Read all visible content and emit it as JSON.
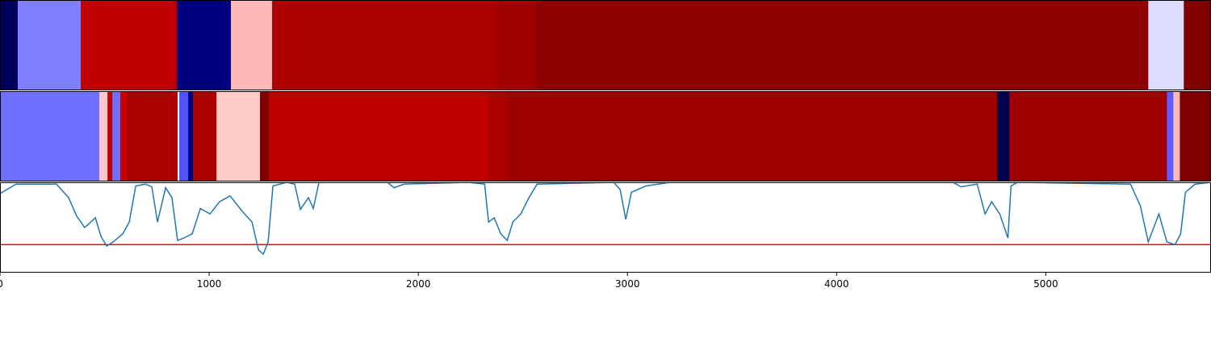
{
  "chart_data": [
    {
      "type": "heatmap-strip",
      "colormap": "seismic",
      "clim": [
        0,
        1
      ],
      "xlim": [
        0,
        5790
      ],
      "bins": [
        0,
        85,
        386,
        846,
        1104,
        1301,
        2375,
        2564,
        5490,
        5660,
        5790
      ],
      "values": [
        0.02,
        0.375,
        0.875,
        0.07,
        0.57,
        0.917,
        0.937,
        0.972,
        0.466,
        1.0
      ]
    },
    {
      "type": "heatmap-strip",
      "colormap": "seismic",
      "clim": [
        0,
        1
      ],
      "xlim": [
        0,
        5790
      ],
      "bins": [
        0,
        475,
        514,
        537,
        575,
        606,
        849,
        857,
        900,
        923,
        1035,
        1243,
        1286,
        2336,
        2421,
        4768,
        4826,
        5579,
        5610,
        5641,
        5790
      ],
      "values": [
        0.358,
        0.554,
        0.875,
        0.358,
        0.86,
        0.917,
        0.5,
        0.33,
        0.07,
        0.917,
        0.55,
        1.0,
        0.875,
        0.917,
        0.937,
        0.0,
        0.937,
        0.34,
        0.57,
        1.0
      ]
    },
    {
      "type": "line",
      "color": "#1f77b4",
      "xlim": [
        0,
        5790
      ],
      "ylim": [
        0,
        1
      ],
      "xticks": [
        0,
        1000,
        2000,
        3000,
        4000,
        5000
      ],
      "hline": 0.31,
      "hline_color": "#ff0000",
      "x": [
        0,
        77,
        270,
        328,
        367,
        405,
        456,
        483,
        510,
        541,
        587,
        618,
        649,
        695,
        726,
        753,
        792,
        822,
        849,
        880,
        919,
        958,
        1004,
        1050,
        1100,
        1158,
        1205,
        1236,
        1259,
        1282,
        1305,
        1371,
        1409,
        1436,
        1475,
        1498,
        1525,
        1853,
        1884,
        1931,
        2239,
        2317,
        2336,
        2363,
        2394,
        2425,
        2452,
        2490,
        2529,
        2568,
        2934,
        2965,
        2992,
        3019,
        3089,
        3147,
        3205,
        4556,
        4595,
        4672,
        4710,
        4741,
        4780,
        4819,
        4834,
        4865,
        5405,
        5452,
        5490,
        5541,
        5579,
        5618,
        5645,
        5668,
        5714,
        5790
      ],
      "values": [
        0.875,
        0.98,
        0.98,
        0.83,
        0.625,
        0.5,
        0.607,
        0.4,
        0.295,
        0.34,
        0.43,
        0.56,
        0.96,
        0.98,
        0.95,
        0.56,
        0.94,
        0.83,
        0.357,
        0.384,
        0.43,
        0.71,
        0.65,
        0.785,
        0.85,
        0.68,
        0.56,
        0.25,
        0.205,
        0.34,
        0.96,
        1.0,
        0.98,
        0.7,
        0.83,
        0.71,
        1.0,
        1.0,
        0.94,
        0.98,
        1.0,
        0.98,
        0.56,
        0.607,
        0.43,
        0.357,
        0.56,
        0.65,
        0.83,
        0.98,
        1.0,
        0.92,
        0.59,
        0.89,
        0.96,
        0.98,
        1.0,
        1.0,
        0.95,
        0.98,
        0.65,
        0.785,
        0.65,
        0.384,
        0.96,
        1.0,
        0.98,
        0.74,
        0.34,
        0.65,
        0.34,
        0.31,
        0.43,
        0.89,
        0.98,
        1.0
      ]
    }
  ]
}
